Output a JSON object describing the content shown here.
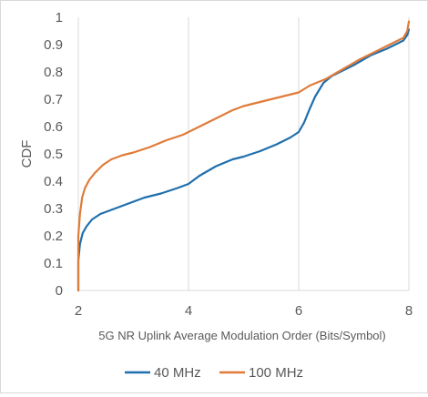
{
  "chart_data": {
    "type": "line",
    "title": "",
    "xlabel": "5G NR Uplink Average Modulation Order (Bits/Symbol)",
    "ylabel": "CDF",
    "xlim": [
      2,
      8
    ],
    "ylim": [
      0,
      1
    ],
    "xticks": [
      "2",
      "4",
      "6",
      "8"
    ],
    "yticks": [
      "0",
      "0.1",
      "0.2",
      "0.3",
      "0.4",
      "0.5",
      "0.6",
      "0.7",
      "0.8",
      "0.9",
      "1"
    ],
    "grid": "vertical",
    "legend_position": "bottom",
    "series": [
      {
        "name": "40 MHz",
        "color": "#1f6fad",
        "x": [
          2.0,
          2.0,
          2.03,
          2.08,
          2.15,
          2.25,
          2.4,
          2.6,
          2.8,
          3.0,
          3.2,
          3.5,
          3.8,
          4.0,
          4.2,
          4.5,
          4.8,
          5.0,
          5.3,
          5.6,
          5.85,
          6.0,
          6.1,
          6.2,
          6.3,
          6.45,
          6.6,
          6.8,
          7.0,
          7.3,
          7.6,
          7.9,
          7.97,
          8.0
        ],
        "y": [
          0.0,
          0.11,
          0.17,
          0.21,
          0.235,
          0.26,
          0.28,
          0.295,
          0.31,
          0.325,
          0.34,
          0.355,
          0.375,
          0.39,
          0.42,
          0.455,
          0.48,
          0.49,
          0.51,
          0.535,
          0.56,
          0.58,
          0.615,
          0.665,
          0.71,
          0.76,
          0.785,
          0.805,
          0.825,
          0.86,
          0.885,
          0.915,
          0.935,
          0.955
        ]
      },
      {
        "name": "100 MHz",
        "color": "#e07b39",
        "x": [
          2.0,
          2.0,
          2.03,
          2.07,
          2.12,
          2.2,
          2.3,
          2.45,
          2.6,
          2.8,
          3.0,
          3.3,
          3.6,
          3.9,
          4.2,
          4.5,
          4.8,
          5.0,
          5.3,
          5.6,
          5.8,
          6.0,
          6.2,
          6.5,
          6.8,
          7.1,
          7.4,
          7.7,
          7.9,
          7.97,
          8.0
        ],
        "y": [
          0.0,
          0.2,
          0.28,
          0.34,
          0.375,
          0.405,
          0.43,
          0.46,
          0.48,
          0.495,
          0.505,
          0.525,
          0.55,
          0.57,
          0.6,
          0.63,
          0.66,
          0.675,
          0.69,
          0.705,
          0.715,
          0.725,
          0.75,
          0.775,
          0.81,
          0.845,
          0.875,
          0.905,
          0.925,
          0.95,
          0.985
        ]
      }
    ]
  }
}
